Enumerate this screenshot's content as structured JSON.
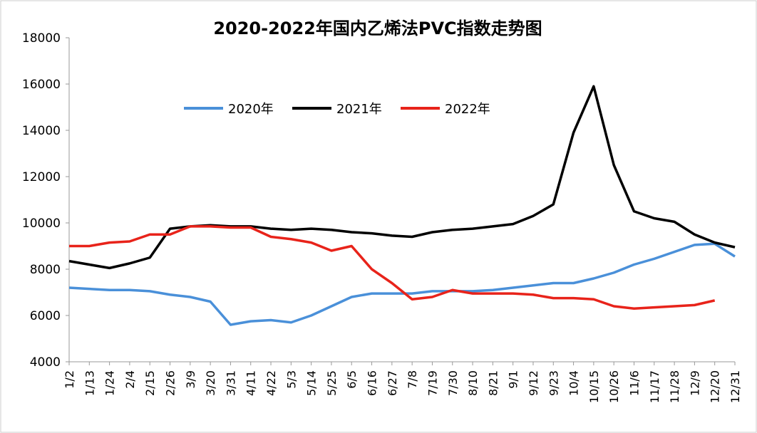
{
  "chart_data": {
    "type": "line",
    "title": "2020-2022年国内乙烯法PVC指数走势图",
    "categories": [
      "1/2",
      "1/13",
      "1/24",
      "2/4",
      "2/15",
      "2/26",
      "3/9",
      "3/20",
      "3/31",
      "4/11",
      "4/22",
      "5/3",
      "5/14",
      "5/25",
      "6/5",
      "6/16",
      "6/27",
      "7/8",
      "7/19",
      "7/30",
      "8/10",
      "8/21",
      "9/1",
      "9/12",
      "9/23",
      "10/4",
      "10/15",
      "10/26",
      "11/6",
      "11/17",
      "11/28",
      "12/9",
      "12/20",
      "12/31"
    ],
    "series": [
      {
        "name": "2020年",
        "color": "#4a90d9",
        "values": [
          7200,
          7150,
          7100,
          7100,
          7050,
          6900,
          6800,
          6600,
          5600,
          5750,
          5800,
          5700,
          6000,
          6400,
          6800,
          6950,
          6950,
          6950,
          7050,
          7050,
          7050,
          7100,
          7200,
          7300,
          7400,
          7400,
          7600,
          7850,
          8200,
          8450,
          8750,
          9050,
          9100,
          8550
        ]
      },
      {
        "name": "2021年",
        "color": "#000000",
        "values": [
          8350,
          8200,
          8050,
          8250,
          8500,
          9750,
          9850,
          9900,
          9850,
          9850,
          9750,
          9700,
          9750,
          9700,
          9600,
          9550,
          9450,
          9400,
          9600,
          9700,
          9750,
          9850,
          9950,
          10300,
          10800,
          13900,
          15900,
          12500,
          10500,
          10200,
          10050,
          9500,
          9150,
          8950
        ]
      },
      {
        "name": "2022年",
        "color": "#e8231a",
        "values": [
          9000,
          9000,
          9150,
          9200,
          9500,
          9500,
          9850,
          9850,
          9800,
          9800,
          9400,
          9300,
          9150,
          8800,
          9000,
          8000,
          7400,
          6700,
          6800,
          7100,
          6950,
          6950,
          6950,
          6900,
          6750,
          6750,
          6700,
          6400,
          6300,
          6350,
          6400,
          6450,
          6650,
          null
        ]
      }
    ],
    "ylim": [
      4000,
      18000
    ],
    "yticks": [
      4000,
      6000,
      8000,
      10000,
      12000,
      14000,
      16000,
      18000
    ]
  }
}
